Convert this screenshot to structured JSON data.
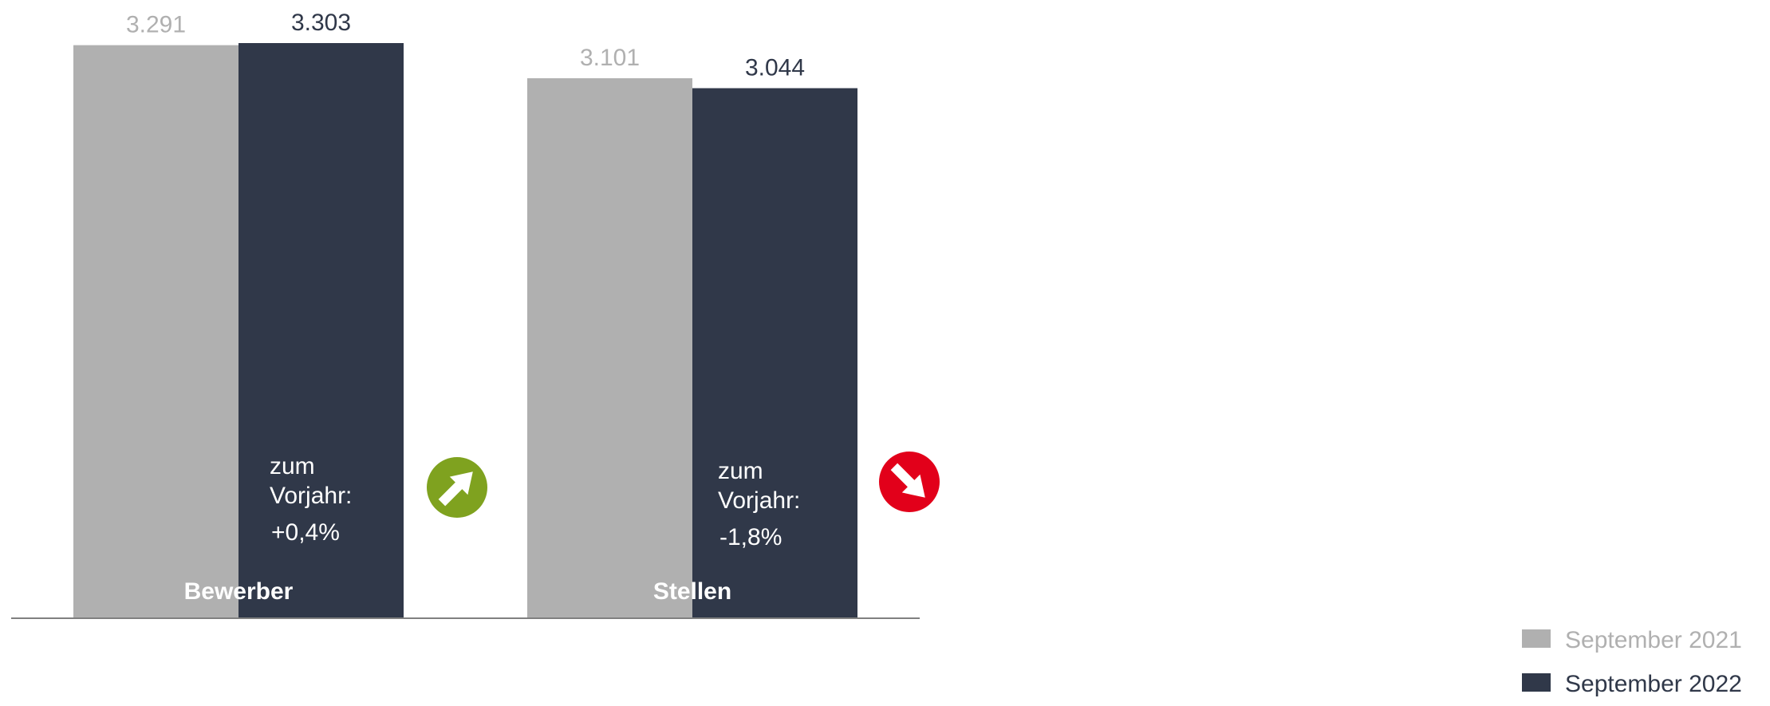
{
  "colors": {
    "series_2021": "#b0b0b0",
    "series_2022": "#303849",
    "up": "#7fa21f",
    "down": "#e2001a",
    "axis": "#808080"
  },
  "icons": {
    "up": "arrow-up-right-icon",
    "down": "arrow-down-right-icon"
  },
  "chart_data": {
    "type": "bar",
    "categories": [
      "Bewerber",
      "Stellen"
    ],
    "series": [
      {
        "name": "September 2021",
        "values": [
          3291,
          3101
        ],
        "labels": [
          "3.291",
          "3.101"
        ]
      },
      {
        "name": "September 2022",
        "values": [
          3303,
          3044
        ],
        "labels": [
          "3.303",
          "3.044"
        ]
      }
    ],
    "ylim": [
      0,
      3303
    ],
    "grid": false,
    "legend_position": "bottom-right",
    "annotations": [
      {
        "category": "Bewerber",
        "line1": "zum",
        "line2": "Vorjahr:",
        "change": "+0,4%",
        "trend": "up"
      },
      {
        "category": "Stellen",
        "line1": "zum",
        "line2": "Vorjahr:",
        "change": "-1,8%",
        "trend": "down"
      }
    ]
  }
}
